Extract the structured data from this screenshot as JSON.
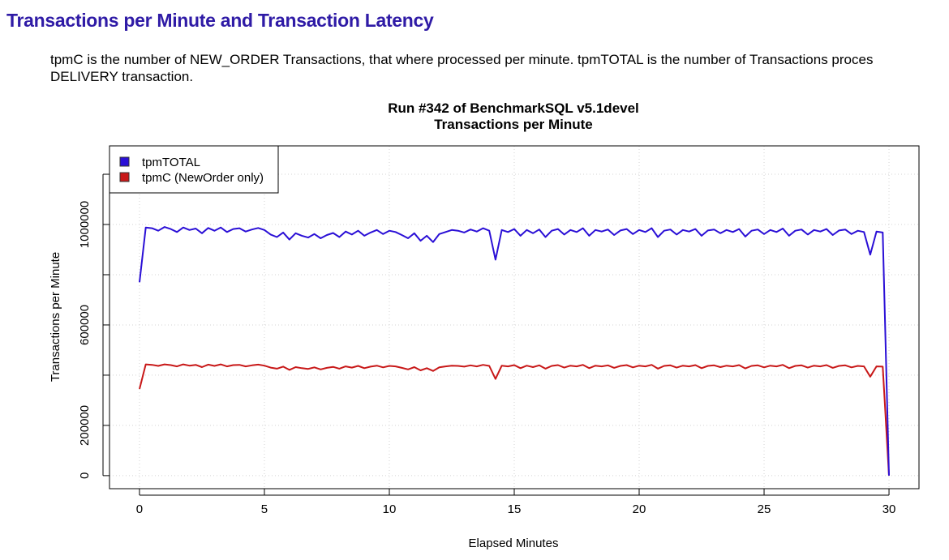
{
  "page": {
    "heading": "Transactions per Minute and Transaction Latency",
    "description_line1": "tpmC is the number of NEW_ORDER Transactions, that where processed per minute. tpmTOTAL is the number of Transactions proces",
    "description_line2": "DELIVERY transaction."
  },
  "chart_data": {
    "type": "line",
    "title": "Run #342 of BenchmarkSQL v5.1devel",
    "subtitle": "Transactions per Minute",
    "xlabel": "Elapsed Minutes",
    "ylabel": "Transactions per Minute",
    "xlim": [
      -1.2,
      31.2
    ],
    "ylim": [
      -52000,
      1313000
    ],
    "x_ticks": [
      0,
      5,
      10,
      15,
      20,
      25,
      30
    ],
    "y_ticks": [
      0,
      200000,
      400000,
      600000,
      800000,
      1000000,
      1200000
    ],
    "y_tick_labels": {
      "0": "0",
      "200000": "200000",
      "600000": "600000",
      "1000000": "1000000"
    },
    "grid": true,
    "legend_position": "top-left",
    "x_start": 0,
    "x_step": 0.25,
    "series": [
      {
        "name": "tpmTOTAL",
        "color": "#2a0fd6",
        "values": [
          770000,
          988000,
          985000,
          975000,
          990000,
          982000,
          970000,
          988000,
          978000,
          984000,
          965000,
          986000,
          975000,
          988000,
          970000,
          982000,
          985000,
          972000,
          980000,
          986000,
          978000,
          960000,
          950000,
          968000,
          940000,
          965000,
          955000,
          948000,
          962000,
          945000,
          958000,
          966000,
          950000,
          972000,
          960000,
          975000,
          955000,
          968000,
          978000,
          962000,
          975000,
          970000,
          958000,
          945000,
          965000,
          935000,
          955000,
          930000,
          962000,
          970000,
          978000,
          975000,
          968000,
          980000,
          972000,
          985000,
          975000,
          860000,
          978000,
          970000,
          982000,
          955000,
          978000,
          965000,
          980000,
          950000,
          975000,
          982000,
          960000,
          978000,
          970000,
          985000,
          955000,
          978000,
          972000,
          980000,
          958000,
          976000,
          982000,
          962000,
          978000,
          970000,
          985000,
          950000,
          975000,
          980000,
          960000,
          978000,
          972000,
          982000,
          955000,
          976000,
          980000,
          965000,
          978000,
          970000,
          982000,
          952000,
          975000,
          980000,
          962000,
          978000,
          970000,
          984000,
          955000,
          975000,
          980000,
          960000,
          978000,
          972000,
          982000,
          958000,
          976000,
          980000,
          962000,
          975000,
          970000,
          880000,
          972000,
          968000,
          0
        ]
      },
      {
        "name": "tpmC (NewOrder only)",
        "color": "#c81818",
        "values": [
          345000,
          443000,
          441000,
          437000,
          443000,
          440000,
          435000,
          443000,
          438000,
          441000,
          432000,
          442000,
          437000,
          443000,
          435000,
          440000,
          441000,
          435000,
          439000,
          442000,
          438000,
          430000,
          426000,
          434000,
          421000,
          432000,
          428000,
          425000,
          431000,
          423000,
          429000,
          433000,
          426000,
          435000,
          430000,
          437000,
          428000,
          434000,
          438000,
          431000,
          437000,
          435000,
          429000,
          423000,
          432000,
          419000,
          428000,
          417000,
          431000,
          435000,
          438000,
          437000,
          434000,
          439000,
          435000,
          441000,
          437000,
          385000,
          438000,
          435000,
          440000,
          428000,
          438000,
          432000,
          439000,
          426000,
          437000,
          440000,
          430000,
          438000,
          435000,
          441000,
          428000,
          438000,
          435000,
          439000,
          429000,
          437000,
          440000,
          431000,
          438000,
          435000,
          441000,
          426000,
          437000,
          439000,
          430000,
          438000,
          435000,
          440000,
          428000,
          437000,
          439000,
          432000,
          438000,
          435000,
          440000,
          427000,
          437000,
          439000,
          431000,
          438000,
          435000,
          441000,
          428000,
          437000,
          439000,
          430000,
          438000,
          435000,
          440000,
          429000,
          437000,
          439000,
          431000,
          437000,
          435000,
          394000,
          435000,
          434000,
          0
        ]
      }
    ]
  }
}
